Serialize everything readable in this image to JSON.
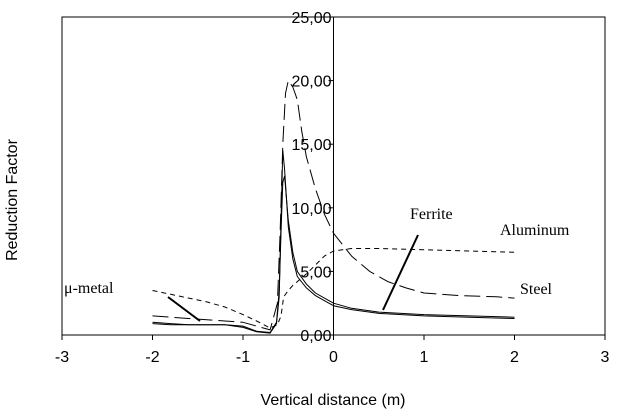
{
  "chart_data": {
    "type": "line",
    "xlabel": "Vertical distance (m)",
    "ylabel": "Reduction Factor",
    "xlim": [
      -3,
      3
    ],
    "ylim": [
      0,
      25
    ],
    "x_ticks": [
      "-3",
      "-2",
      "-1",
      "0",
      "1",
      "2",
      "3"
    ],
    "y_ticks": [
      "0,00",
      "5,00",
      "10,00",
      "15,00",
      "20,00",
      "25,00"
    ],
    "grid": false,
    "legend": "inline labels with leader lines",
    "series": [
      {
        "name": "Aluminum",
        "dash": "short-dash",
        "x": [
          -2.0,
          -1.8,
          -1.6,
          -1.4,
          -1.2,
          -1.0,
          -0.85,
          -0.7,
          -0.62,
          -0.58,
          -0.55,
          -0.5,
          -0.45,
          -0.4,
          -0.3,
          -0.2,
          -0.1,
          0.0,
          0.2,
          0.5,
          1.0,
          1.5,
          2.0
        ],
        "y": [
          3.5,
          3.2,
          2.9,
          2.6,
          2.2,
          1.6,
          1.1,
          0.55,
          0.8,
          1.5,
          3.0,
          3.5,
          3.9,
          4.2,
          4.8,
          5.5,
          6.2,
          6.6,
          6.8,
          6.8,
          6.7,
          6.6,
          6.5
        ]
      },
      {
        "name": "Steel",
        "dash": "long-dash",
        "x": [
          -2.0,
          -1.8,
          -1.6,
          -1.4,
          -1.2,
          -1.0,
          -0.85,
          -0.7,
          -0.62,
          -0.59,
          -0.56,
          -0.53,
          -0.5,
          -0.45,
          -0.4,
          -0.35,
          -0.3,
          -0.2,
          -0.1,
          0.0,
          0.2,
          0.4,
          0.6,
          0.8,
          1.0,
          1.4,
          1.8,
          2.0
        ],
        "y": [
          1.5,
          1.4,
          1.3,
          1.2,
          1.1,
          1.0,
          0.7,
          0.4,
          2.5,
          8.0,
          15.0,
          19.0,
          20.0,
          19.5,
          18.5,
          16.0,
          14.0,
          11.5,
          9.5,
          8.0,
          6.2,
          5.0,
          4.2,
          3.7,
          3.3,
          3.1,
          3.0,
          2.9
        ]
      },
      {
        "name": "Ferrite",
        "dash": "solid",
        "x": [
          -2.0,
          -1.8,
          -1.6,
          -1.4,
          -1.2,
          -1.0,
          -0.85,
          -0.7,
          -0.63,
          -0.6,
          -0.58,
          -0.56,
          -0.54,
          -0.5,
          -0.45,
          -0.4,
          -0.3,
          -0.2,
          -0.1,
          0.0,
          0.2,
          0.5,
          1.0,
          1.5,
          2.0
        ],
        "y": [
          1.0,
          0.9,
          0.8,
          0.8,
          0.8,
          0.7,
          0.3,
          0.2,
          1.0,
          3.5,
          8.0,
          12.0,
          12.5,
          9.0,
          6.5,
          5.0,
          4.0,
          3.3,
          2.9,
          2.5,
          2.1,
          1.8,
          1.6,
          1.5,
          1.4
        ]
      },
      {
        "name": "μ-metal",
        "dash": "solid",
        "x": [
          -2.0,
          -1.8,
          -1.6,
          -1.4,
          -1.2,
          -1.0,
          -0.85,
          -0.7,
          -0.63,
          -0.6,
          -0.58,
          -0.56,
          -0.54,
          -0.5,
          -0.45,
          -0.4,
          -0.3,
          -0.2,
          -0.1,
          0.0,
          0.2,
          0.5,
          1.0,
          1.5,
          2.0
        ],
        "y": [
          0.9,
          0.8,
          0.8,
          0.8,
          0.8,
          0.6,
          0.25,
          0.15,
          0.9,
          3.0,
          9.0,
          14.5,
          13.0,
          8.5,
          6.0,
          4.6,
          3.7,
          3.1,
          2.7,
          2.3,
          2.0,
          1.7,
          1.5,
          1.4,
          1.3
        ]
      }
    ]
  }
}
